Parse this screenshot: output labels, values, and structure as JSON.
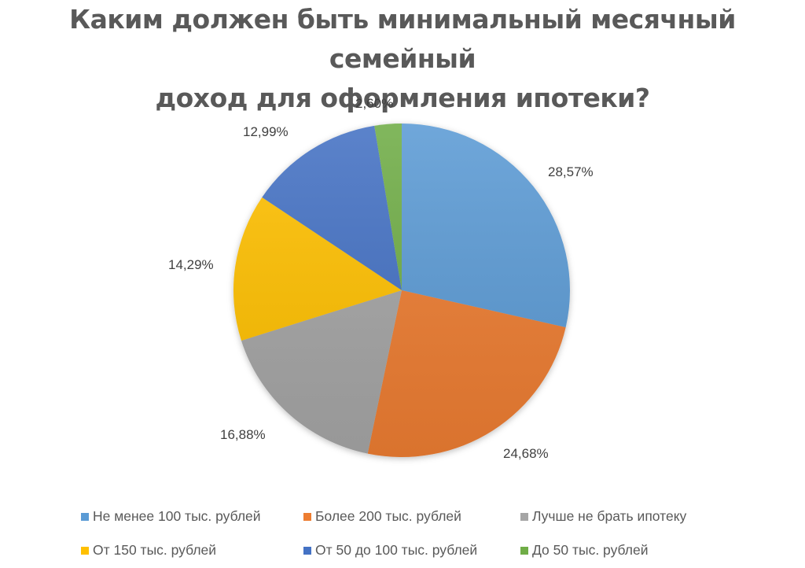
{
  "title": {
    "line1": "Каким должен быть минимальный месячный семейный",
    "line2": "доход для оформления ипотеки?"
  },
  "chart_data": {
    "type": "pie",
    "title": "Каким должен быть минимальный месячный семейный доход для оформления ипотеки?",
    "categories": [
      "Не менее 100 тыс. рублей",
      "Более 200 тыс. рублей",
      "Лучше не брать ипотеку",
      "От 150 тыс. рублей",
      "От 50 до 100 тыс. рублей",
      "До 50 тыс. рублей"
    ],
    "values": [
      28.57,
      24.68,
      16.88,
      14.29,
      12.99,
      2.6
    ],
    "value_labels": [
      "28,57%",
      "24,68%",
      "16,88%",
      "14,29%",
      "12,99%",
      "2,60%"
    ],
    "colors": [
      "#5B9BD5",
      "#ED7D31",
      "#A5A5A5",
      "#FFC000",
      "#4472C4",
      "#70AD47"
    ],
    "start_angle": "12 o'clock, clockwise",
    "legend_position": "bottom"
  },
  "legend": [
    {
      "label": "Не менее 100 тыс. рублей",
      "color": "#5B9BD5"
    },
    {
      "label": "Более 200 тыс. рублей",
      "color": "#ED7D31"
    },
    {
      "label": "Лучше не брать ипотеку",
      "color": "#A5A5A5"
    },
    {
      "label": "От 150 тыс. рублей",
      "color": "#FFC000"
    },
    {
      "label": "От 50 до 100 тыс. рублей",
      "color": "#4472C4"
    },
    {
      "label": "До 50 тыс. рублей",
      "color": "#70AD47"
    }
  ]
}
